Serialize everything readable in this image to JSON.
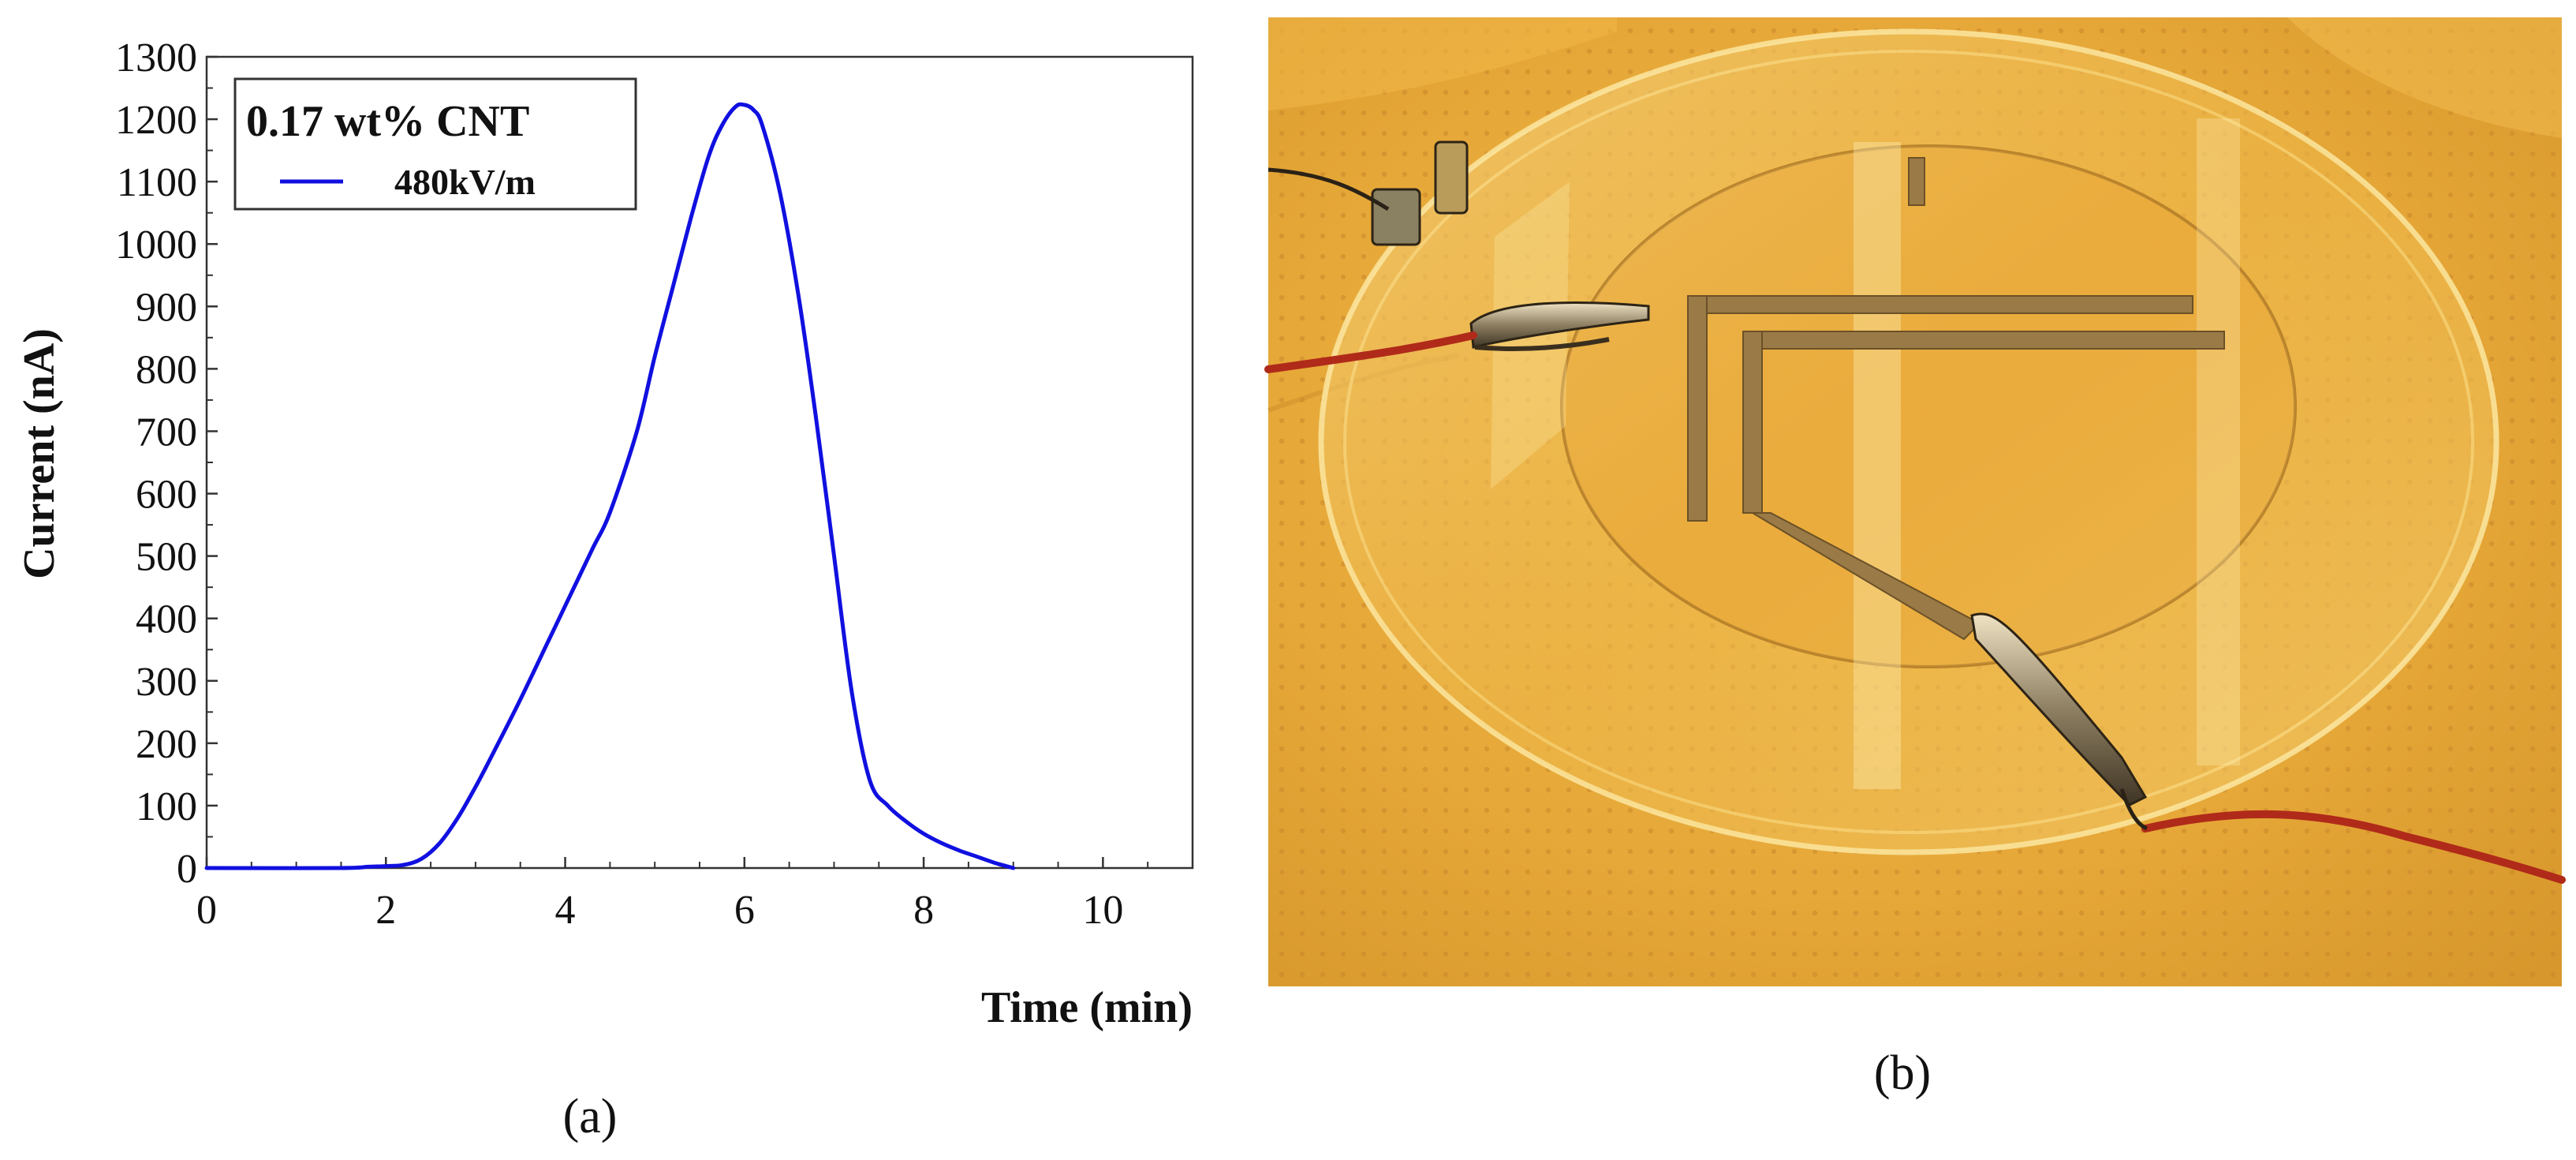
{
  "chart_data": {
    "type": "line",
    "title": "",
    "xlabel": "Time (min)",
    "ylabel": "Current (nA)",
    "xlim": [
      0,
      11
    ],
    "ylim": [
      0,
      1300
    ],
    "x_ticks": [
      0,
      2,
      4,
      6,
      8,
      10
    ],
    "y_ticks": [
      0,
      100,
      200,
      300,
      400,
      500,
      600,
      700,
      800,
      900,
      1000,
      1100,
      1200,
      1300
    ],
    "grid": false,
    "legend": {
      "placement": "top-left",
      "title": "0.17 wt% CNT",
      "entries": [
        "480kV/m"
      ]
    },
    "series": [
      {
        "name": "480kV/m",
        "color": "#1010e0",
        "x": [
          0,
          1.5,
          1.8,
          2.0,
          2.2,
          2.4,
          2.6,
          2.8,
          3.0,
          3.2,
          3.5,
          3.8,
          4.0,
          4.3,
          4.5,
          4.8,
          5.0,
          5.2,
          5.4,
          5.6,
          5.75,
          5.9,
          6.0,
          6.1,
          6.2,
          6.4,
          6.6,
          6.8,
          7.0,
          7.2,
          7.4,
          7.6,
          7.8,
          8.0,
          8.2,
          8.4,
          8.6,
          8.8,
          9.0
        ],
        "values": [
          0,
          0,
          2,
          3,
          5,
          15,
          40,
          80,
          130,
          185,
          270,
          360,
          420,
          510,
          570,
          700,
          820,
          930,
          1040,
          1140,
          1190,
          1220,
          1223,
          1215,
          1190,
          1080,
          920,
          720,
          500,
          280,
          140,
          100,
          75,
          55,
          40,
          28,
          18,
          8,
          0
        ]
      }
    ]
  },
  "figure": {
    "caption_a": "(a)",
    "caption_b": "(b)",
    "photo": {
      "description_icon": "experimental-setup-photo",
      "background_color": "#e6a838",
      "wire_color": "#b02a1a"
    }
  }
}
